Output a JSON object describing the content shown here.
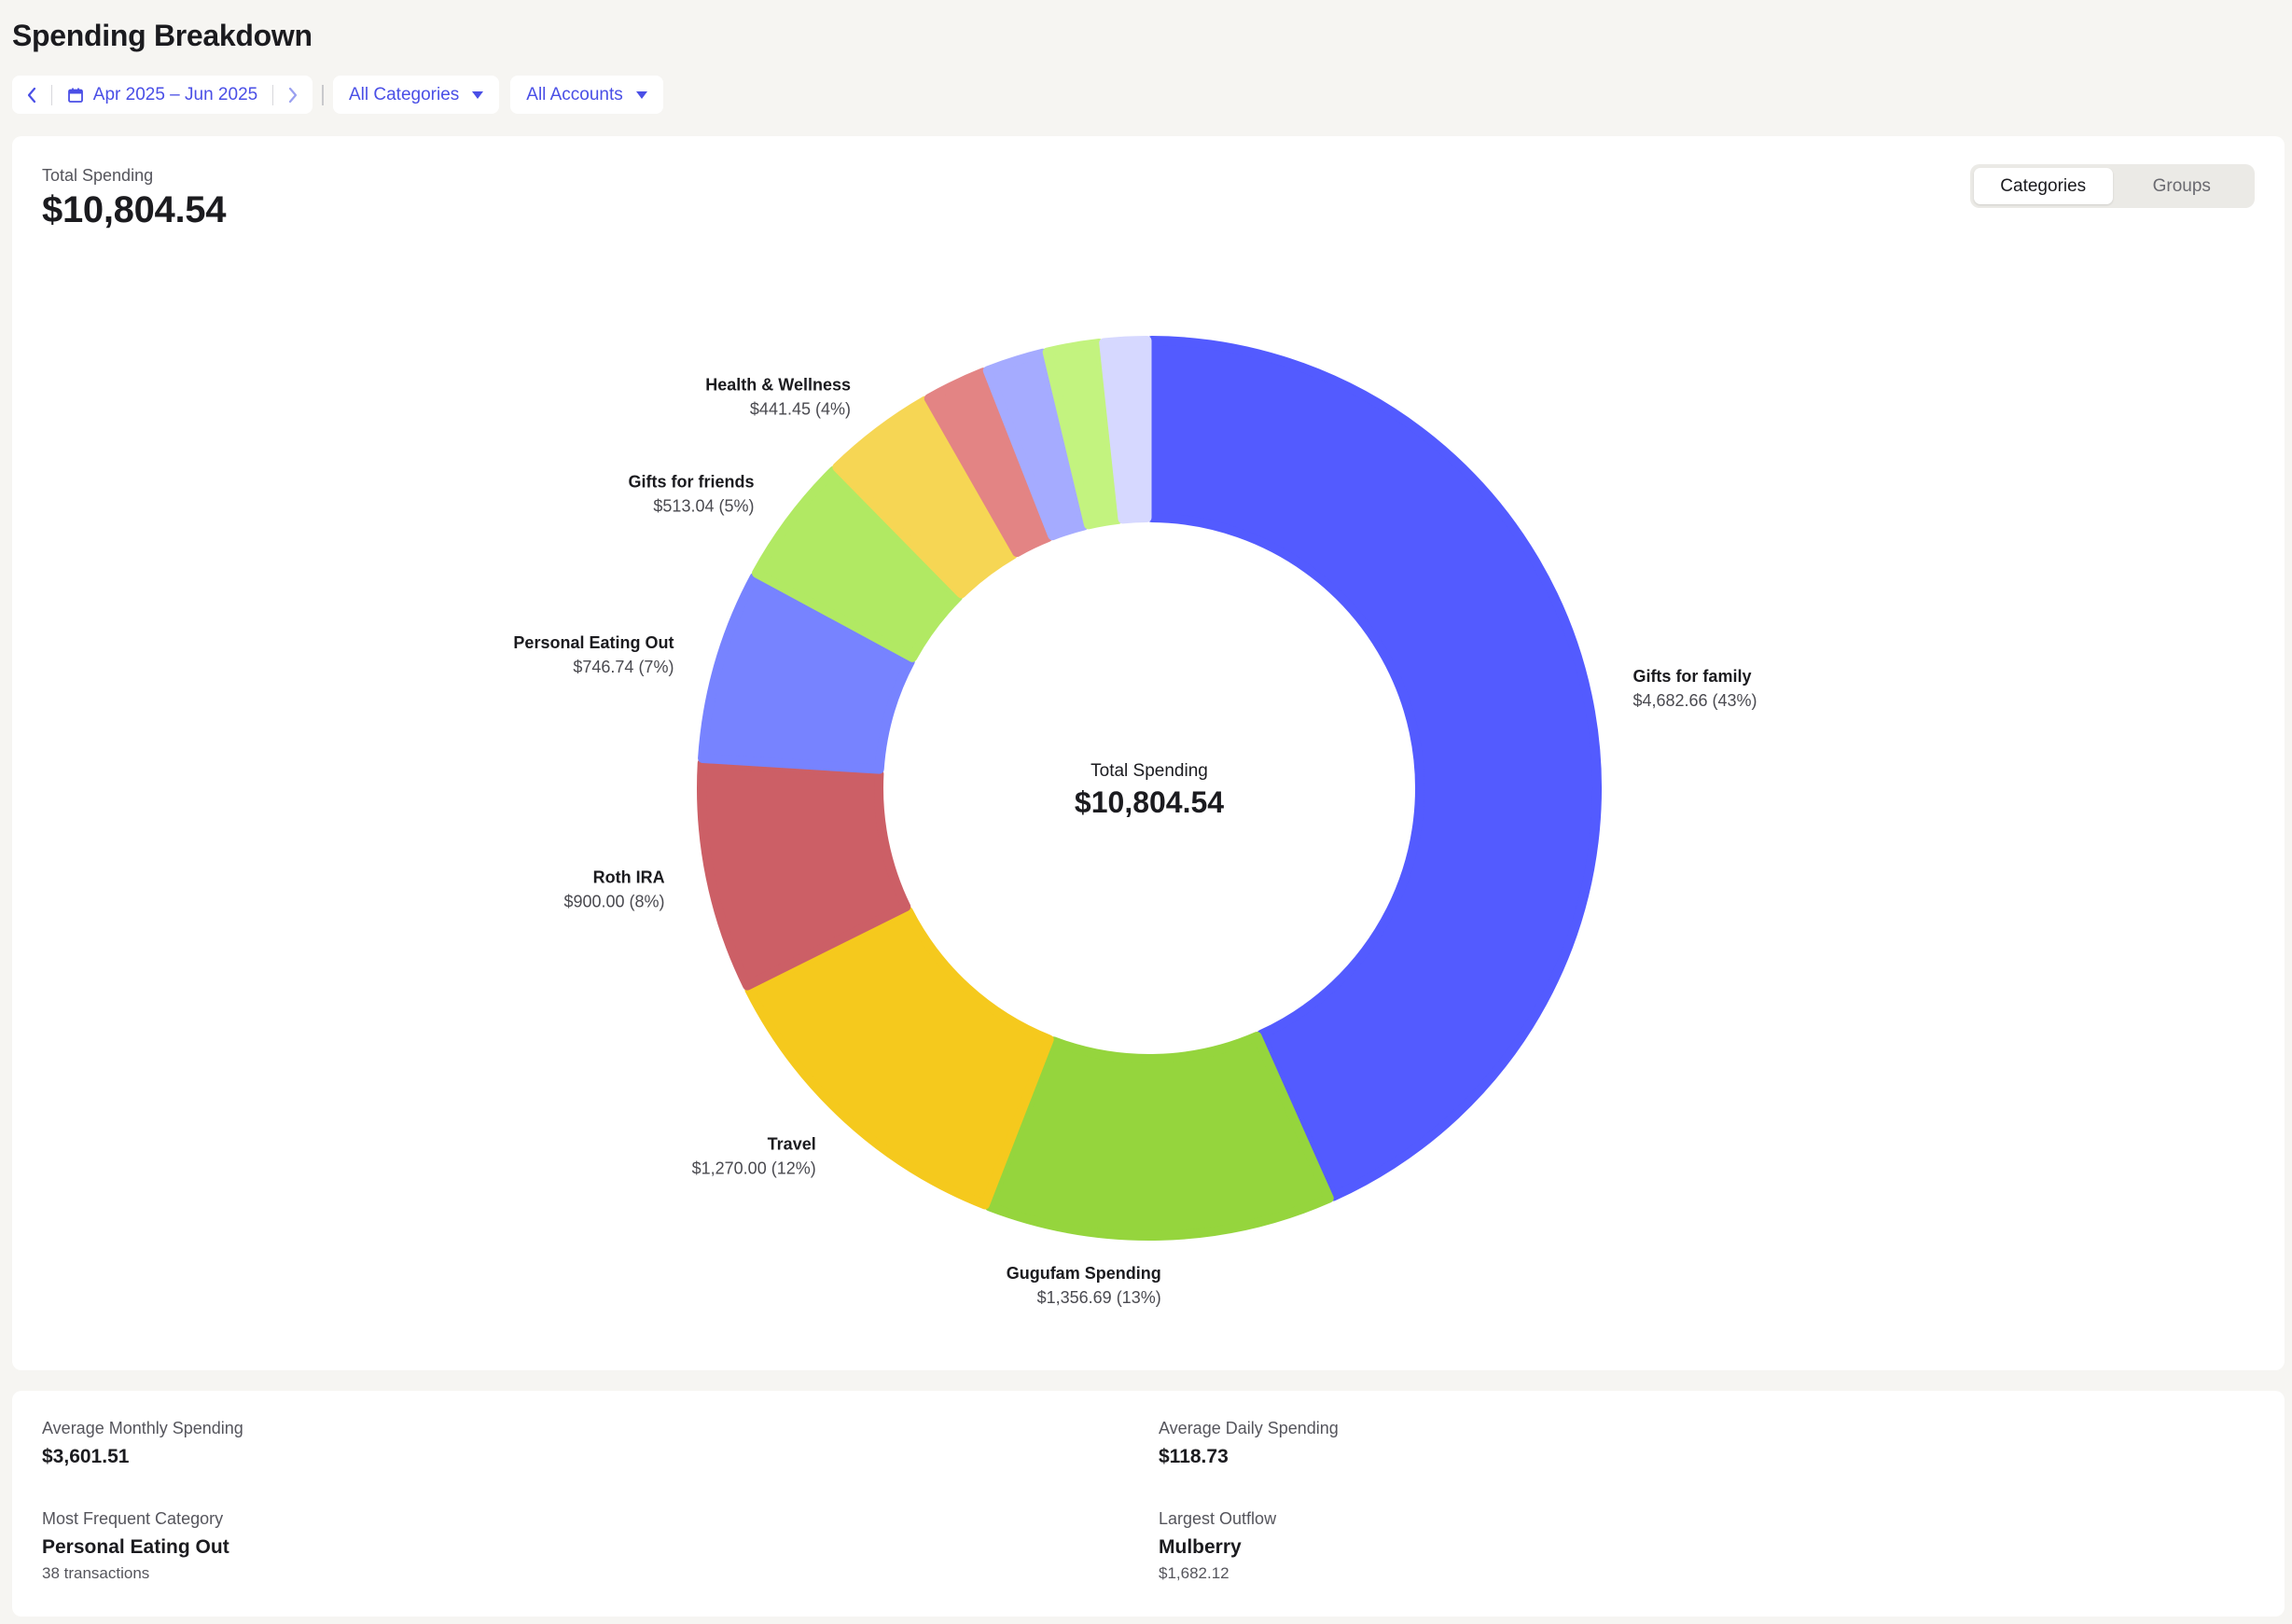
{
  "page": {
    "title": "Spending Breakdown"
  },
  "filters": {
    "date_range": "Apr 2025 – Jun 2025",
    "categories": "All Categories",
    "accounts": "All Accounts"
  },
  "summary": {
    "total_label": "Total Spending",
    "total_value": "$10,804.54"
  },
  "view_toggle": {
    "options": [
      "Categories",
      "Groups"
    ],
    "selected": "Categories"
  },
  "chart_data": {
    "type": "donut",
    "center_label": "Total Spending",
    "center_value": "$10,804.54",
    "total": 10804.54,
    "slices": [
      {
        "name": "Gifts for family",
        "value": 4682.66,
        "display": "$4,682.66 (43%)",
        "color": "#535bff"
      },
      {
        "name": "Gugufam Spending",
        "value": 1356.69,
        "display": "$1,356.69 (13%)",
        "color": "#95d53d"
      },
      {
        "name": "Travel",
        "value": 1270.0,
        "display": "$1,270.00 (12%)",
        "color": "#f5c91d"
      },
      {
        "name": "Roth IRA",
        "value": 900.0,
        "display": "$900.00 (8%)",
        "color": "#cc5f66"
      },
      {
        "name": "Personal Eating Out",
        "value": 746.74,
        "display": "$746.74 (7%)",
        "color": "#7783ff"
      },
      {
        "name": "Gifts for friends",
        "value": 513.04,
        "display": "$513.04 (5%)",
        "color": "#b1e963"
      },
      {
        "name": "Health & Wellness",
        "value": 441.45,
        "display": "$441.45 (4%)",
        "color": "#f6d654"
      },
      {
        "name": "",
        "value": 250.0,
        "display": "",
        "color": "#e38484"
      },
      {
        "name": "",
        "value": 240.0,
        "display": "",
        "color": "#a5abff"
      },
      {
        "name": "",
        "value": 220.0,
        "display": "",
        "color": "#c3f37f"
      },
      {
        "name": "",
        "value": 183.96,
        "display": "",
        "color": "#d6d8ff"
      }
    ]
  },
  "stats": {
    "avg_monthly": {
      "label": "Average Monthly Spending",
      "value": "$3,601.51"
    },
    "avg_daily": {
      "label": "Average Daily Spending",
      "value": "$118.73"
    },
    "frequent_category": {
      "label": "Most Frequent Category",
      "value": "Personal Eating Out",
      "sub": "38 transactions"
    },
    "largest_outflow": {
      "label": "Largest Outflow",
      "value": "Mulberry",
      "sub": "$1,682.12"
    }
  }
}
